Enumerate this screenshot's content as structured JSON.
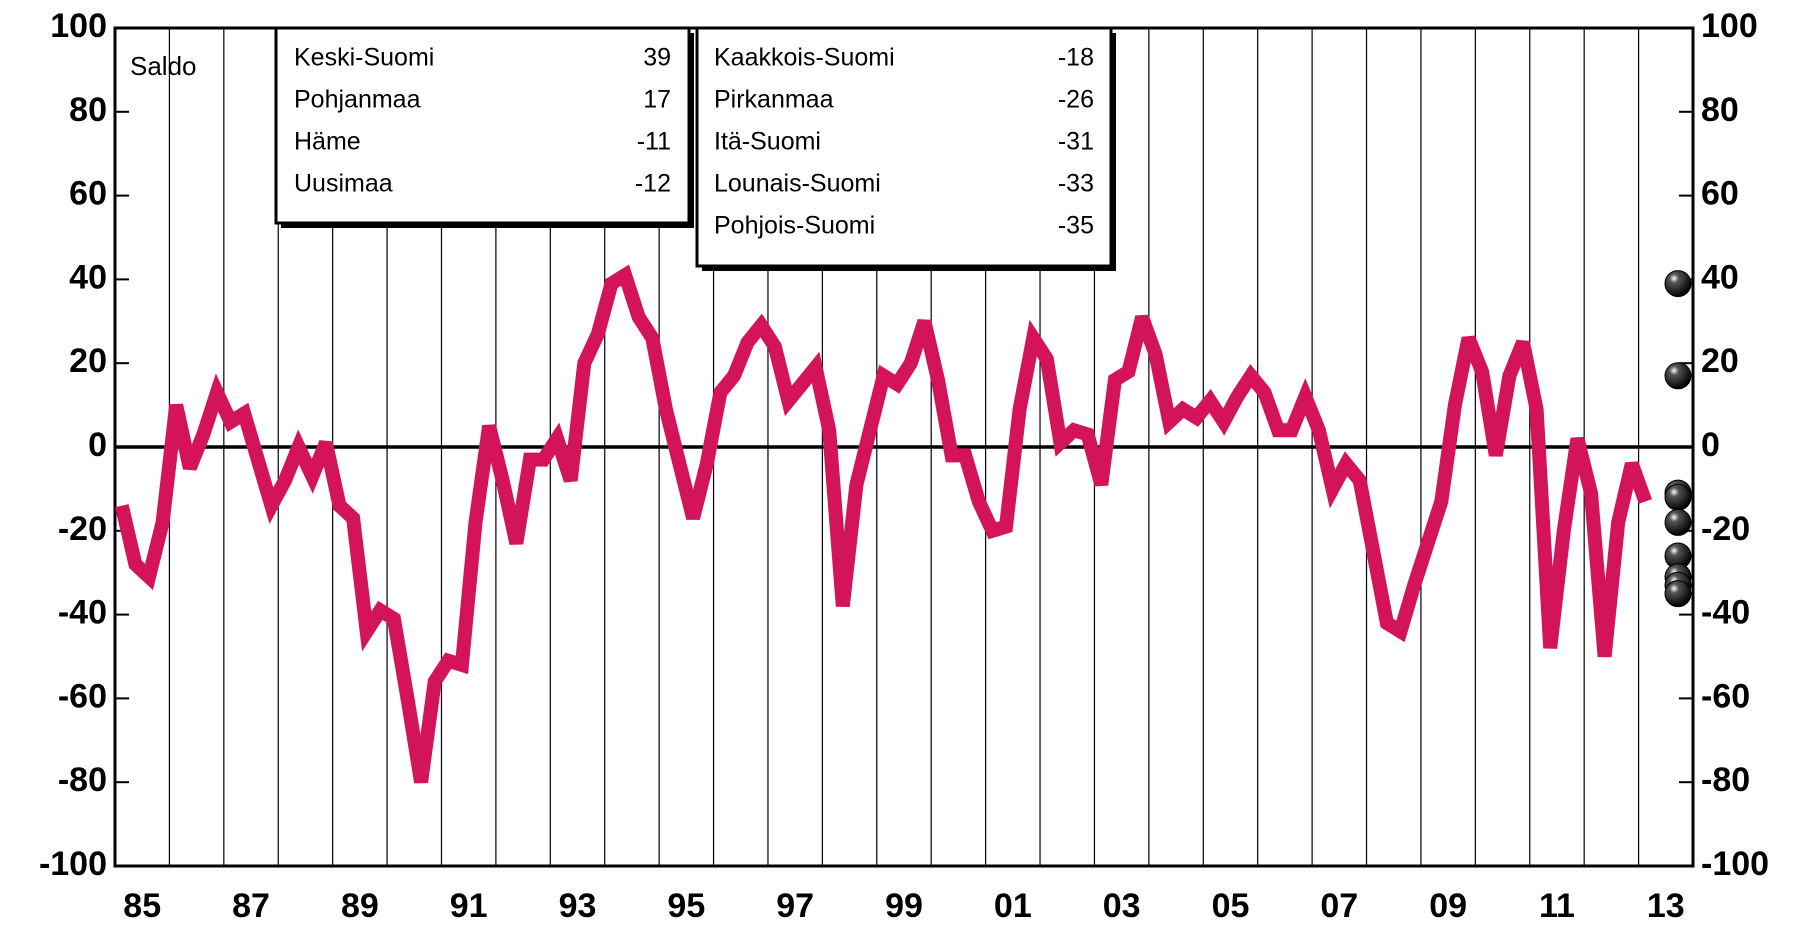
{
  "chart_data": {
    "type": "line",
    "y_label": "Saldo",
    "color": "#d4145a",
    "xlim": [
      1985,
      2014
    ],
    "xticks": [
      {
        "value": 1985.5,
        "label": "85"
      },
      {
        "value": 1987.5,
        "label": "87"
      },
      {
        "value": 1989.5,
        "label": "89"
      },
      {
        "value": 1991.5,
        "label": "91"
      },
      {
        "value": 1993.5,
        "label": "93"
      },
      {
        "value": 1995.5,
        "label": "95"
      },
      {
        "value": 1997.5,
        "label": "97"
      },
      {
        "value": 1999.5,
        "label": "99"
      },
      {
        "value": 2001.5,
        "label": "01"
      },
      {
        "value": 2003.5,
        "label": "03"
      },
      {
        "value": 2005.5,
        "label": "05"
      },
      {
        "value": 2007.5,
        "label": "07"
      },
      {
        "value": 2009.5,
        "label": "09"
      },
      {
        "value": 2011.5,
        "label": "11"
      },
      {
        "value": 2013.5,
        "label": "13"
      }
    ],
    "ylim": [
      -100,
      100
    ],
    "yticks": [
      -100,
      -80,
      -60,
      -40,
      -20,
      0,
      20,
      40,
      60,
      80,
      100
    ],
    "y2lim": [
      -100,
      100
    ],
    "y2ticks": [
      -100,
      -80,
      -60,
      -40,
      -20,
      0,
      20,
      40,
      60,
      80,
      100
    ],
    "grid": true,
    "x": [
      1985.125,
      1985.375,
      1985.625,
      1985.875,
      1986.125,
      1986.375,
      1986.625,
      1986.875,
      1987.125,
      1987.375,
      1987.625,
      1987.875,
      1988.125,
      1988.375,
      1988.625,
      1988.875,
      1989.125,
      1989.375,
      1989.625,
      1989.875,
      1990.125,
      1990.375,
      1990.625,
      1990.875,
      1991.125,
      1991.375,
      1991.625,
      1991.875,
      1992.125,
      1992.375,
      1992.625,
      1992.875,
      1993.125,
      1993.375,
      1993.625,
      1993.875,
      1994.125,
      1994.375,
      1994.625,
      1994.875,
      1995.125,
      1995.375,
      1995.625,
      1995.875,
      1996.125,
      1996.375,
      1996.625,
      1996.875,
      1997.125,
      1997.375,
      1997.625,
      1997.875,
      1998.125,
      1998.375,
      1998.625,
      1998.875,
      1999.125,
      1999.375,
      1999.625,
      1999.875,
      2000.125,
      2000.375,
      2000.625,
      2000.875,
      2001.125,
      2001.375,
      2001.625,
      2001.875,
      2002.125,
      2002.375,
      2002.625,
      2002.875,
      2003.125,
      2003.375,
      2003.625,
      2003.875,
      2004.125,
      2004.375,
      2004.625,
      2004.875,
      2005.125,
      2005.375,
      2005.625,
      2005.875,
      2006.125,
      2006.375,
      2006.625,
      2006.875,
      2007.125,
      2007.375,
      2007.625,
      2007.875,
      2008.125,
      2008.375,
      2008.625,
      2008.875,
      2009.125,
      2009.375,
      2009.625,
      2009.875,
      2010.125,
      2010.375,
      2010.625,
      2010.875,
      2011.125,
      2011.375,
      2011.625,
      2011.875,
      2012.125,
      2012.375,
      2012.625,
      2012.875,
      2013.125
    ],
    "values": [
      -14,
      -28,
      -31,
      -18,
      10,
      -5,
      3,
      13,
      6,
      8,
      -3,
      -14,
      -8,
      0,
      -7,
      1,
      -14,
      -17,
      -44,
      -39,
      -41,
      -60,
      -80,
      -56,
      -51,
      -52,
      -18,
      5,
      -8,
      -23,
      -3,
      -3,
      2,
      -8,
      20,
      27,
      39,
      41,
      31,
      26,
      9,
      -4,
      -17,
      -4,
      13,
      17,
      25,
      29,
      24,
      11,
      15,
      19,
      4,
      -38,
      -9,
      4,
      17,
      15,
      20,
      30,
      16,
      -2,
      -2,
      -13,
      -20,
      -19,
      9,
      26,
      21,
      1,
      4,
      3,
      -9,
      16,
      18,
      31,
      22,
      6,
      9,
      7,
      11,
      6,
      12,
      17,
      13,
      4,
      4,
      12,
      4,
      -10,
      -4,
      -8,
      -25,
      -42,
      -44,
      -33,
      -23,
      -13,
      10,
      26,
      18,
      -2,
      17,
      25,
      9,
      -48,
      -20,
      2,
      -11,
      -50,
      -18,
      -4,
      -13
    ],
    "regions": [
      [
        {
          "name": "Keski-Suomi",
          "value": 39
        },
        {
          "name": "Pohjanmaa",
          "value": 17
        },
        {
          "name": "Häme",
          "value": -11
        },
        {
          "name": "Uusimaa",
          "value": -12
        }
      ],
      [
        {
          "name": "Kaakkois-Suomi",
          "value": -18
        },
        {
          "name": "Pirkanmaa",
          "value": -26
        },
        {
          "name": "Itä-Suomi",
          "value": -31
        },
        {
          "name": "Lounais-Suomi",
          "value": -33
        },
        {
          "name": "Pohjois-Suomi",
          "value": -35
        }
      ]
    ]
  }
}
